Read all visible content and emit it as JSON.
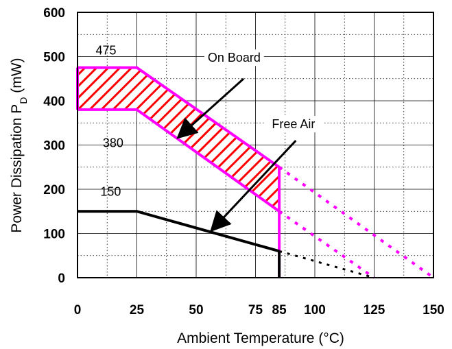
{
  "chart_data": {
    "type": "line",
    "title": "",
    "xlabel": "Ambient Temperature (°C)",
    "ylabel_main": "Power Dissipation P",
    "ylabel_sub": "D",
    "ylabel_unit": " (mW)",
    "xlim": [
      0,
      150
    ],
    "ylim": [
      0,
      600
    ],
    "x_ticks": [
      "0",
      "25",
      "50",
      "75",
      "85",
      "100",
      "125",
      "150"
    ],
    "x_tick_values": [
      0,
      25,
      50,
      75,
      85,
      100,
      125,
      150
    ],
    "y_ticks": [
      "0",
      "100",
      "200",
      "300",
      "400",
      "500",
      "600"
    ],
    "y_tick_values": [
      0,
      100,
      200,
      300,
      400,
      500,
      600
    ],
    "grid": true,
    "colors": {
      "on_board": "#ff00ff",
      "hatch": "#ff0000",
      "free_air": "#000000"
    },
    "series": [
      {
        "name": "On Board",
        "key": "onboard_upper",
        "x": [
          0,
          25,
          85
        ],
        "y": [
          475,
          475,
          250
        ],
        "extrapolated": {
          "x": [
            85,
            150
          ],
          "y": [
            250,
            0
          ]
        }
      },
      {
        "name": "On Board",
        "key": "onboard_lower",
        "x": [
          0,
          25,
          85
        ],
        "y": [
          380,
          380,
          150
        ],
        "extrapolated": {
          "x": [
            85,
            125
          ],
          "y": [
            150,
            0
          ]
        }
      },
      {
        "name": "Free Air",
        "key": "free_air",
        "x": [
          0,
          25,
          85
        ],
        "y": [
          150,
          150,
          60
        ],
        "extrapolated": {
          "x": [
            85,
            125
          ],
          "y": [
            60,
            0
          ]
        }
      }
    ],
    "data_labels": [
      {
        "text": "475",
        "x": 12,
        "y": 505
      },
      {
        "text": "380",
        "x": 15,
        "y": 295
      },
      {
        "text": "150",
        "x": 14,
        "y": 185
      }
    ],
    "annotations": [
      {
        "text": "On Board",
        "x": 66,
        "y": 488,
        "arrow_from": [
          70,
          450
        ],
        "arrow_to": [
          43,
          320
        ]
      },
      {
        "text": "Free Air",
        "x": 91,
        "y": 338,
        "arrow_from": [
          92,
          310
        ],
        "arrow_to": [
          57,
          110
        ]
      }
    ]
  }
}
